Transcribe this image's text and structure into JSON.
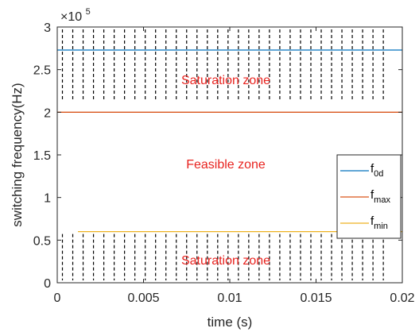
{
  "chart_data": {
    "type": "line",
    "title": "",
    "xlabel": "time (s)",
    "ylabel": "switching frequency(Hz)",
    "xlim": [
      0,
      0.02
    ],
    "ylim": [
      0,
      300000
    ],
    "x_tick_labels": [
      "0",
      "0.005",
      "0.01",
      "0.015",
      "0.02"
    ],
    "y_tick_labels": [
      "0",
      "0.5",
      "1",
      "1.5",
      "2",
      "2.5",
      "3"
    ],
    "y_exponent_label": "×10",
    "y_exponent_power": "5",
    "grid": false,
    "legend_position": "right",
    "series": [
      {
        "name_main": "f",
        "name_sub": "0d",
        "color": "#0072bd",
        "y": 273000
      },
      {
        "name_main": "f",
        "name_sub": "max",
        "color": "#d95319",
        "y": 200000
      },
      {
        "name_main": "f",
        "name_sub": "min",
        "color": "#edb120",
        "y": 60000
      }
    ],
    "annotations": {
      "upper_zone": "Saturation zone",
      "middle_zone": "Feasible zone",
      "lower_zone": "Saturation zone"
    },
    "switching_pulses": {
      "x_start": 0.0003,
      "x_step": 0.0006,
      "count": 32,
      "upper_band": [
        210000,
        300000
      ],
      "lower_band": [
        0,
        60000
      ],
      "style": "dashed",
      "color": "#000000"
    }
  }
}
